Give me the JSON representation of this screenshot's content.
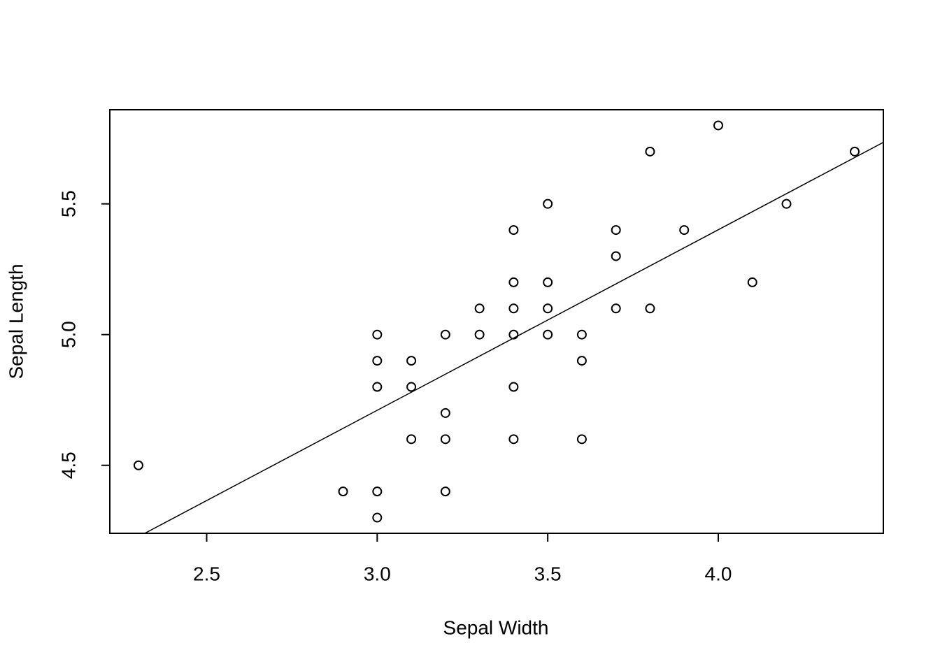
{
  "chart_data": {
    "type": "scatter",
    "x_label": "Sepal Width",
    "y_label": "Sepal Length",
    "color": "#000000",
    "xlim": [
      2.216,
      4.484
    ],
    "ylim": [
      4.24,
      5.86
    ],
    "xticks": [
      2.5,
      {
        "value": 3,
        "label": "3.0"
      },
      3.5,
      {
        "value": 4,
        "label": "4.0"
      }
    ],
    "yticks": [
      4.5,
      {
        "value": 5,
        "label": "5.0"
      },
      5.5
    ],
    "x": [
      2.3,
      2.9,
      3.0,
      3.0,
      3.0,
      3.0,
      3.0,
      3.1,
      3.1,
      3.1,
      3.2,
      3.2,
      3.2,
      3.2,
      3.3,
      3.3,
      3.4,
      3.4,
      3.4,
      3.4,
      3.4,
      3.4,
      3.5,
      3.5,
      3.5,
      3.5,
      3.6,
      3.6,
      3.6,
      3.7,
      3.7,
      3.7,
      3.8,
      3.8,
      3.9,
      4.0,
      4.1,
      4.2,
      4.4
    ],
    "y": [
      4.5,
      4.4,
      4.4,
      4.3,
      4.8,
      4.9,
      5.0,
      4.9,
      4.8,
      4.6,
      5.0,
      4.7,
      4.6,
      4.4,
      5.1,
      5.0,
      5.4,
      5.2,
      5.1,
      5.0,
      4.8,
      4.6,
      5.5,
      5.2,
      5.1,
      5.0,
      5.0,
      4.9,
      4.6,
      5.4,
      5.3,
      5.1,
      5.7,
      5.1,
      5.4,
      5.8,
      5.2,
      5.5,
      5.7
    ],
    "regression": {
      "intercept": 2.639,
      "slope": 0.6905
    }
  }
}
